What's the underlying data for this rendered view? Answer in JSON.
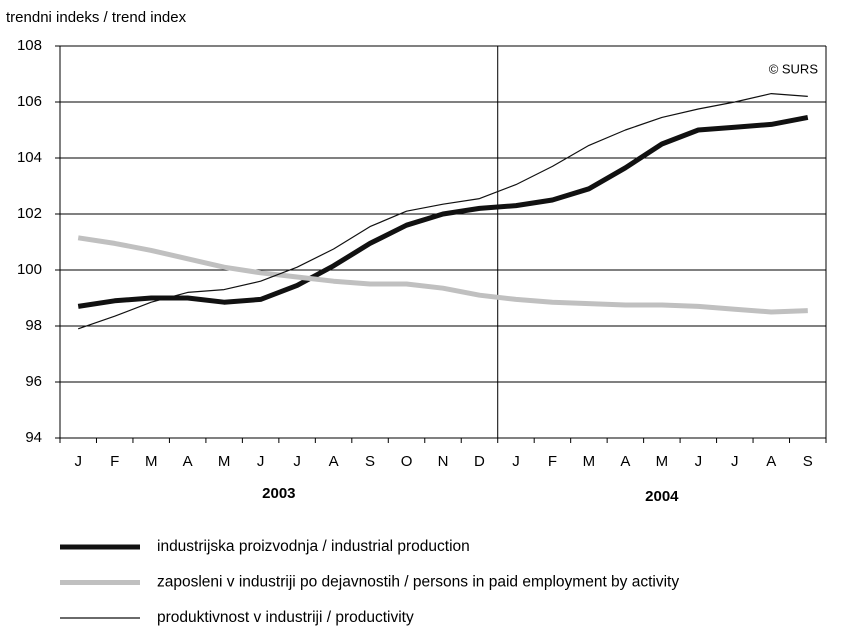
{
  "chart_data": {
    "type": "line",
    "y_axis_label": "trendni indeks / trend index",
    "annotation": "© SURS",
    "categories": [
      "J",
      "F",
      "M",
      "A",
      "M",
      "J",
      "J",
      "A",
      "S",
      "O",
      "N",
      "D",
      "J",
      "F",
      "M",
      "A",
      "M",
      "J",
      "J",
      "A",
      "S"
    ],
    "groups": [
      {
        "label": "2003",
        "count": 12
      },
      {
        "label": "2004",
        "count": 9
      }
    ],
    "ylim": [
      94,
      108
    ],
    "yticks": [
      94,
      96,
      98,
      100,
      102,
      104,
      106,
      108
    ],
    "grid": true,
    "series": [
      {
        "name": "industrijska proizvodnja / industrial production",
        "color": "#111111",
        "width": 5,
        "values": [
          98.7,
          98.9,
          99.0,
          99.0,
          98.85,
          98.95,
          99.45,
          100.15,
          100.95,
          101.6,
          102.0,
          102.2,
          102.3,
          102.5,
          102.9,
          103.65,
          104.5,
          105.0,
          105.1,
          105.2,
          105.45
        ]
      },
      {
        "name": "zaposleni v industriji po dejavnostih / persons in paid employment by activity",
        "color": "#c0c0c0",
        "width": 5,
        "values": [
          101.15,
          100.95,
          100.7,
          100.4,
          100.1,
          99.9,
          99.75,
          99.6,
          99.5,
          99.5,
          99.35,
          99.1,
          98.95,
          98.85,
          98.8,
          98.75,
          98.75,
          98.7,
          98.6,
          98.5,
          98.55
        ]
      },
      {
        "name": "produktivnost v industriji / productivity",
        "color": "#111111",
        "width": 1.2,
        "values": [
          97.9,
          98.35,
          98.85,
          99.2,
          99.3,
          99.6,
          100.1,
          100.75,
          101.55,
          102.1,
          102.35,
          102.55,
          103.05,
          103.7,
          104.45,
          105.0,
          105.45,
          105.75,
          106.0,
          106.3,
          106.2
        ]
      }
    ]
  }
}
